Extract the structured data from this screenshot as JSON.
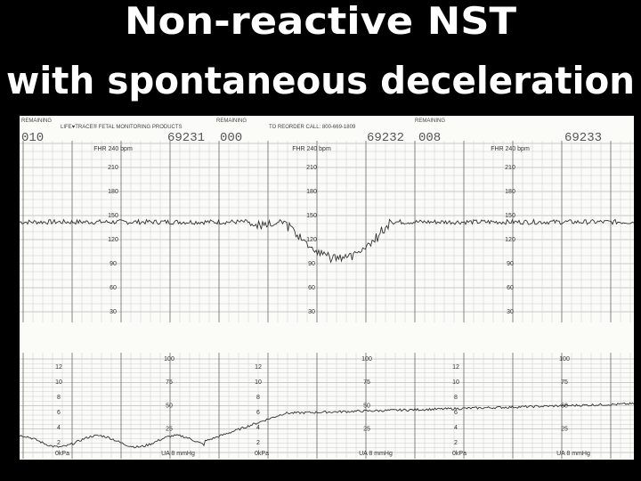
{
  "title": [
    "Non-reactive NST",
    "with spontaneous deceleration"
  ],
  "strip": {
    "header": {
      "brand": "LIFE♥TRACE® FETAL MONITORING PRODUCTS",
      "reorder": "TO REORDER CALL: 800-669-1809",
      "remaining": "REMAINING",
      "pages": [
        {
          "counter": "010",
          "serial": "69231"
        },
        {
          "counter": "000",
          "serial": "69232"
        },
        {
          "counter": "008",
          "serial": "69233"
        }
      ]
    },
    "fhr_label": "FHR 240 bpm",
    "fhr_scale": [
      "210",
      "180",
      "150",
      "120",
      "90",
      "60",
      "30"
    ],
    "toco_scale": [
      "100",
      "75",
      "50",
      "25"
    ],
    "kpa_scale": [
      "12",
      "10",
      "8",
      "6",
      "4",
      "2"
    ],
    "ua_label": "UA 8 mmHg",
    "kpa_label": "0kPa"
  }
}
